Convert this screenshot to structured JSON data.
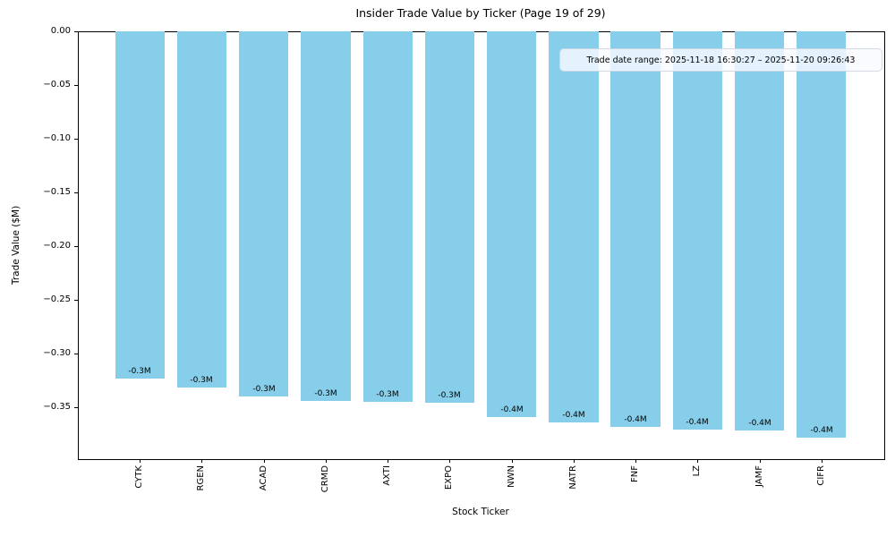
{
  "chart_data": {
    "type": "bar",
    "title": "Insider Trade Value by Ticker (Page 19 of 29)",
    "xlabel": "Stock Ticker",
    "ylabel": "Trade Value ($M)",
    "categories": [
      "CYTK",
      "RGEN",
      "ACAD",
      "CRMD",
      "AXTI",
      "EXPO",
      "NWN",
      "NATR",
      "FNF",
      "LZ",
      "JAMF",
      "CIFR"
    ],
    "values": [
      -0.323,
      -0.332,
      -0.34,
      -0.344,
      -0.345,
      -0.346,
      -0.359,
      -0.364,
      -0.368,
      -0.371,
      -0.372,
      -0.378
    ],
    "bar_labels": [
      "-0.3M",
      "-0.3M",
      "-0.3M",
      "-0.3M",
      "-0.3M",
      "-0.3M",
      "-0.4M",
      "-0.4M",
      "-0.4M",
      "-0.4M",
      "-0.4M",
      "-0.4M"
    ],
    "bar_color": "#87CEEB",
    "y_ticks": [
      {
        "value": 0.0,
        "label": "0.00"
      },
      {
        "value": -0.05,
        "label": "−0.05"
      },
      {
        "value": -0.1,
        "label": "−0.10"
      },
      {
        "value": -0.15,
        "label": "−0.15"
      },
      {
        "value": -0.2,
        "label": "−0.20"
      },
      {
        "value": -0.25,
        "label": "−0.25"
      },
      {
        "value": -0.3,
        "label": "−0.30"
      },
      {
        "value": -0.35,
        "label": "−0.35"
      }
    ],
    "ylim": [
      -0.3975,
      0
    ],
    "xlim": [
      -1,
      12
    ],
    "grid": false,
    "legend": null,
    "annotation": "Trade date range: 2025-11-18 16:30:27 – 2025-11-20 09:26:43"
  }
}
